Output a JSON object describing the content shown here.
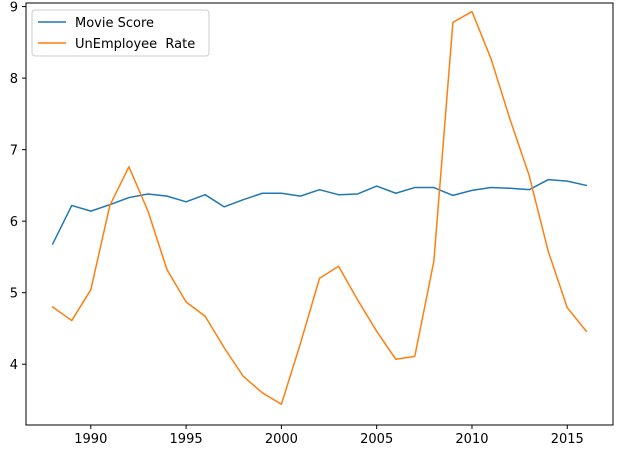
{
  "chart_data": {
    "type": "line",
    "title": "",
    "xlabel": "",
    "ylabel": "",
    "xlim": [
      1986.6,
      2017.4
    ],
    "ylim": [
      3.15,
      9.05
    ],
    "xticks": [
      1990,
      1995,
      2000,
      2005,
      2010,
      2015
    ],
    "yticks": [
      4,
      5,
      6,
      7,
      8,
      9
    ],
    "grid": false,
    "legend_position": "top-left",
    "x": [
      1988,
      1989,
      1990,
      1991,
      1992,
      1993,
      1994,
      1995,
      1996,
      1997,
      1998,
      1999,
      2000,
      2001,
      2002,
      2003,
      2004,
      2005,
      2006,
      2007,
      2008,
      2009,
      2010,
      2011,
      2012,
      2013,
      2014,
      2015,
      2016
    ],
    "series": [
      {
        "name": "Movie Score",
        "color": "#1f77b4",
        "values": [
          5.68,
          6.22,
          6.14,
          6.23,
          6.33,
          6.38,
          6.35,
          6.27,
          6.37,
          6.2,
          6.3,
          6.39,
          6.39,
          6.35,
          6.44,
          6.37,
          6.38,
          6.49,
          6.39,
          6.47,
          6.47,
          6.36,
          6.43,
          6.47,
          6.46,
          6.44,
          6.58,
          6.56,
          6.5
        ]
      },
      {
        "name": "UnEmployee  Rate",
        "color": "#ff7f0e",
        "values": [
          4.8,
          4.61,
          5.04,
          6.22,
          6.76,
          6.14,
          5.32,
          4.87,
          4.67,
          4.23,
          3.83,
          3.6,
          3.44,
          4.29,
          5.2,
          5.37,
          4.9,
          4.46,
          4.07,
          4.11,
          5.44,
          8.78,
          8.93,
          8.27,
          7.42,
          6.64,
          5.58,
          4.79,
          4.46
        ]
      }
    ]
  }
}
